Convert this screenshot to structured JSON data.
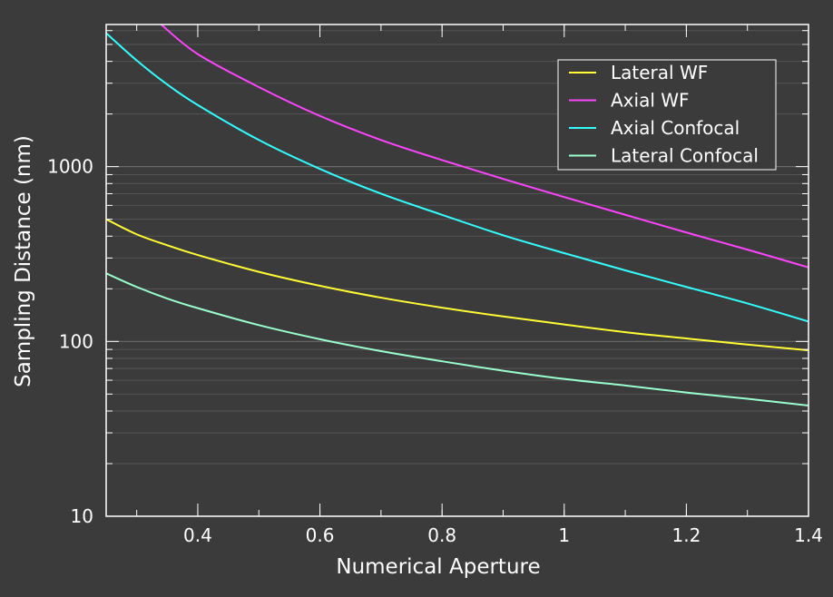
{
  "chart_data": {
    "type": "line",
    "title": "",
    "xlabel": "Numerical Aperture",
    "ylabel": "Sampling Distance (nm)",
    "xlim": [
      0.25,
      1.4
    ],
    "ylim": [
      10,
      6500
    ],
    "yscale": "log",
    "grid": true,
    "legend_position": "top-right",
    "xticks": [
      0.4,
      0.6,
      0.8,
      1.0,
      1.2,
      1.4
    ],
    "xtick_labels": [
      "0.4",
      "0.6",
      "0.8",
      "1",
      "1.2",
      "1.4"
    ],
    "yticks": [
      10,
      100,
      1000
    ],
    "ytick_labels": [
      "10",
      "100",
      "1000"
    ],
    "colors": {
      "background": "#3b3b3b",
      "axes": "#ffffff",
      "grid": "#6a6a6a"
    },
    "series": [
      {
        "name": "Lateral WF",
        "color": "#ffff33",
        "x": [
          0.25,
          0.3,
          0.35,
          0.4,
          0.5,
          0.6,
          0.7,
          0.8,
          0.9,
          1.0,
          1.1,
          1.2,
          1.3,
          1.4
        ],
        "y": [
          500,
          410,
          355,
          312,
          250,
          208,
          178,
          156,
          139,
          125,
          113,
          104,
          96,
          89
        ]
      },
      {
        "name": "Axial WF",
        "color": "#ff44ff",
        "x": [
          0.34,
          0.4,
          0.5,
          0.6,
          0.7,
          0.8,
          0.9,
          1.0,
          1.1,
          1.2,
          1.3,
          1.4
        ],
        "y": [
          6500,
          4400,
          2850,
          1950,
          1420,
          1090,
          850,
          670,
          530,
          420,
          335,
          265
        ]
      },
      {
        "name": "Axial Confocal",
        "color": "#33ffff",
        "x": [
          0.25,
          0.3,
          0.35,
          0.4,
          0.5,
          0.6,
          0.7,
          0.8,
          0.9,
          1.0,
          1.1,
          1.2,
          1.3,
          1.4
        ],
        "y": [
          5800,
          4050,
          2950,
          2250,
          1420,
          970,
          700,
          530,
          405,
          320,
          255,
          205,
          165,
          130
        ]
      },
      {
        "name": "Lateral Confocal",
        "color": "#99ffcc",
        "x": [
          0.25,
          0.3,
          0.35,
          0.4,
          0.5,
          0.6,
          0.7,
          0.8,
          0.9,
          1.0,
          1.1,
          1.2,
          1.3,
          1.4
        ],
        "y": [
          245,
          205,
          176,
          155,
          124,
          103,
          88,
          77,
          68,
          61,
          56,
          51,
          47,
          43
        ]
      }
    ]
  }
}
